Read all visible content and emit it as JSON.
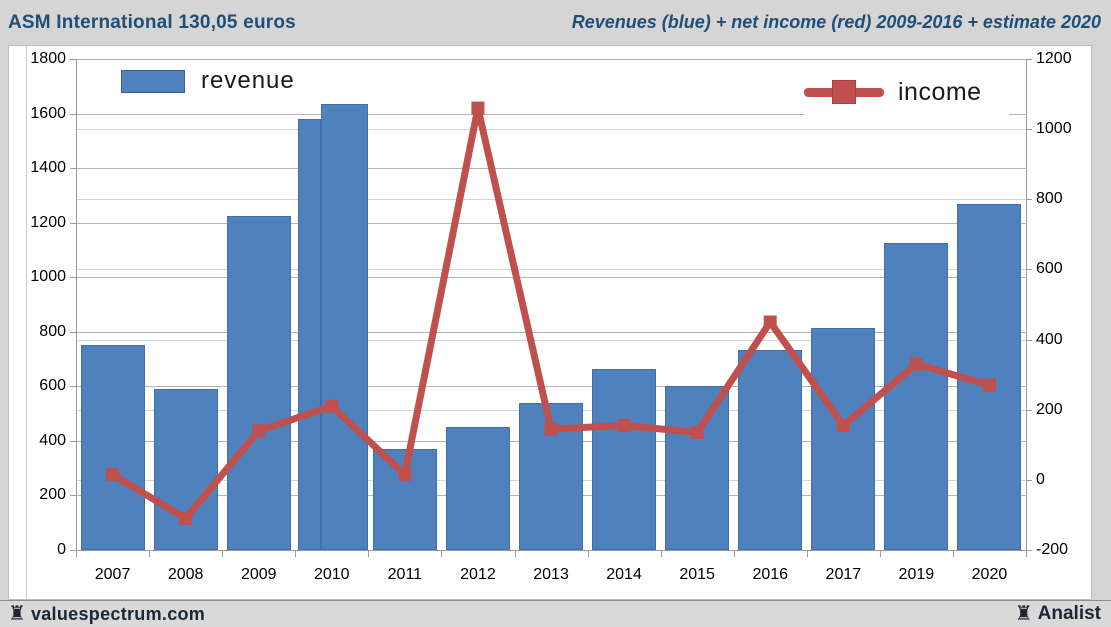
{
  "header": {
    "left_title": "ASM International 130,05 euros",
    "right_title": "Revenues (blue) + net income (red) 2009-2016 + estimate 2020"
  },
  "legend": {
    "revenue_label": "revenue",
    "income_label": "income"
  },
  "footer": {
    "site": "valuespectrum.com",
    "brand": "Analist",
    "rook_icon": "♜"
  },
  "colors": {
    "revenue_bar": "#4f81bd",
    "income_line": "#c0504d",
    "header_text": "#1f4e79",
    "page_background": "#d5d5d5",
    "plot_background": "#ffffff",
    "gridline_major": "#b5b5b5",
    "gridline_minor": "#d4d4d4",
    "axis_line": "#9a9a9a",
    "axis_text": "#000000"
  },
  "chart_data": {
    "type": "bar",
    "subtype": "bar+line combo, dual axis",
    "title": "ASM International 130,05 euros",
    "subtitle": "Revenues (blue) + net income (red) 2009-2016 + estimate 2020",
    "categories": [
      "2007",
      "2008",
      "2009",
      "2010",
      "2011",
      "2012",
      "2013",
      "2014",
      "2015",
      "2016",
      "2017",
      "2019",
      "2020"
    ],
    "series": [
      {
        "name": "revenue",
        "type": "bar",
        "axis": "left",
        "color": "#4f81bd",
        "values": [
          750,
          590,
          1225,
          [
            1580,
            1635
          ],
          370,
          450,
          540,
          665,
          600,
          735,
          815,
          1125,
          1270
        ],
        "note": "2010 is drawn as two adjacent stepped bars (1580 and 1635)"
      },
      {
        "name": "income",
        "type": "line",
        "axis": "right",
        "color": "#c0504d",
        "marker": "square",
        "values": [
          15,
          -110,
          140,
          210,
          15,
          1060,
          145,
          155,
          135,
          450,
          155,
          330,
          270
        ]
      }
    ],
    "left_axis": {
      "min": 0,
      "max": 1800,
      "step": 200,
      "ticks": [
        0,
        200,
        400,
        600,
        800,
        1000,
        1200,
        1400,
        1600,
        1800
      ]
    },
    "right_axis": {
      "min": -200,
      "max": 1200,
      "step": 200,
      "ticks": [
        -200,
        0,
        200,
        400,
        600,
        800,
        1000,
        1200
      ]
    },
    "grid": true,
    "x_note": "year 2018 absent from axis",
    "legend_position": "revenue top-left, income top-right, inside plot"
  }
}
